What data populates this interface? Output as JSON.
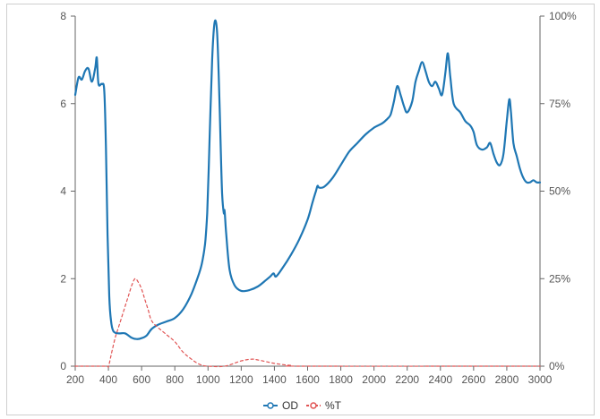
{
  "chart_data": {
    "type": "line",
    "x_axis": {
      "min": 200,
      "max": 3000,
      "ticks": [
        200,
        400,
        600,
        800,
        1000,
        1200,
        1400,
        1600,
        1800,
        2000,
        2200,
        2400,
        2600,
        2800,
        3000
      ]
    },
    "y_axis_left": {
      "min": 0,
      "max": 8,
      "ticks": [
        0,
        2,
        4,
        6,
        8
      ]
    },
    "y_axis_right": {
      "min": 0,
      "max": 100,
      "ticks": [
        0,
        25,
        50,
        75,
        100
      ],
      "tick_labels": [
        "0%",
        "25%",
        "50%",
        "75%",
        "100%"
      ]
    },
    "grid": false,
    "legend_position": "bottom-center",
    "series": [
      {
        "name": "OD",
        "axis": "left",
        "color": "#1f77b4",
        "style": "solid",
        "points": [
          [
            200,
            6.2
          ],
          [
            220,
            6.6
          ],
          [
            240,
            6.55
          ],
          [
            260,
            6.75
          ],
          [
            280,
            6.8
          ],
          [
            300,
            6.5
          ],
          [
            320,
            6.8
          ],
          [
            330,
            7.05
          ],
          [
            340,
            6.45
          ],
          [
            360,
            6.45
          ],
          [
            375,
            6.3
          ],
          [
            385,
            5.0
          ],
          [
            395,
            3.0
          ],
          [
            405,
            1.6
          ],
          [
            415,
            1.05
          ],
          [
            430,
            0.8
          ],
          [
            460,
            0.75
          ],
          [
            500,
            0.75
          ],
          [
            540,
            0.65
          ],
          [
            570,
            0.62
          ],
          [
            600,
            0.64
          ],
          [
            630,
            0.7
          ],
          [
            660,
            0.85
          ],
          [
            700,
            0.95
          ],
          [
            750,
            1.02
          ],
          [
            800,
            1.1
          ],
          [
            850,
            1.3
          ],
          [
            900,
            1.65
          ],
          [
            940,
            2.05
          ],
          [
            960,
            2.3
          ],
          [
            975,
            2.6
          ],
          [
            985,
            2.9
          ],
          [
            995,
            3.5
          ],
          [
            1005,
            4.6
          ],
          [
            1015,
            5.9
          ],
          [
            1025,
            7.0
          ],
          [
            1035,
            7.7
          ],
          [
            1045,
            7.9
          ],
          [
            1055,
            7.6
          ],
          [
            1065,
            6.6
          ],
          [
            1075,
            5.2
          ],
          [
            1085,
            3.95
          ],
          [
            1095,
            3.5
          ],
          [
            1100,
            3.55
          ],
          [
            1110,
            3.0
          ],
          [
            1130,
            2.2
          ],
          [
            1160,
            1.85
          ],
          [
            1200,
            1.72
          ],
          [
            1250,
            1.74
          ],
          [
            1300,
            1.82
          ],
          [
            1350,
            1.97
          ],
          [
            1375,
            2.05
          ],
          [
            1395,
            2.12
          ],
          [
            1410,
            2.05
          ],
          [
            1450,
            2.25
          ],
          [
            1500,
            2.55
          ],
          [
            1550,
            2.9
          ],
          [
            1600,
            3.35
          ],
          [
            1630,
            3.75
          ],
          [
            1650,
            4.0
          ],
          [
            1660,
            4.12
          ],
          [
            1670,
            4.08
          ],
          [
            1700,
            4.1
          ],
          [
            1750,
            4.3
          ],
          [
            1800,
            4.6
          ],
          [
            1850,
            4.9
          ],
          [
            1900,
            5.1
          ],
          [
            1950,
            5.3
          ],
          [
            2000,
            5.45
          ],
          [
            2050,
            5.55
          ],
          [
            2080,
            5.65
          ],
          [
            2100,
            5.75
          ],
          [
            2120,
            6.05
          ],
          [
            2140,
            6.4
          ],
          [
            2160,
            6.2
          ],
          [
            2180,
            5.95
          ],
          [
            2200,
            5.8
          ],
          [
            2230,
            6.05
          ],
          [
            2250,
            6.5
          ],
          [
            2270,
            6.75
          ],
          [
            2290,
            6.95
          ],
          [
            2310,
            6.75
          ],
          [
            2330,
            6.5
          ],
          [
            2350,
            6.4
          ],
          [
            2370,
            6.5
          ],
          [
            2390,
            6.35
          ],
          [
            2410,
            6.2
          ],
          [
            2430,
            6.7
          ],
          [
            2445,
            7.15
          ],
          [
            2460,
            6.6
          ],
          [
            2480,
            6.0
          ],
          [
            2520,
            5.8
          ],
          [
            2550,
            5.6
          ],
          [
            2580,
            5.5
          ],
          [
            2600,
            5.35
          ],
          [
            2620,
            5.05
          ],
          [
            2650,
            4.95
          ],
          [
            2680,
            5.0
          ],
          [
            2700,
            5.1
          ],
          [
            2720,
            4.85
          ],
          [
            2740,
            4.65
          ],
          [
            2760,
            4.6
          ],
          [
            2780,
            4.85
          ],
          [
            2800,
            5.6
          ],
          [
            2815,
            6.1
          ],
          [
            2825,
            5.8
          ],
          [
            2840,
            5.1
          ],
          [
            2860,
            4.8
          ],
          [
            2880,
            4.5
          ],
          [
            2900,
            4.3
          ],
          [
            2920,
            4.2
          ],
          [
            2940,
            4.2
          ],
          [
            2960,
            4.25
          ],
          [
            2980,
            4.2
          ],
          [
            3000,
            4.2
          ]
        ]
      },
      {
        "name": "%T",
        "axis": "right",
        "color": "#e05353",
        "style": "dashed",
        "points": [
          [
            200,
            0
          ],
          [
            380,
            0
          ],
          [
            400,
            0
          ],
          [
            420,
            4
          ],
          [
            440,
            8
          ],
          [
            460,
            11
          ],
          [
            480,
            14
          ],
          [
            500,
            17
          ],
          [
            520,
            20
          ],
          [
            540,
            23
          ],
          [
            560,
            25
          ],
          [
            580,
            24
          ],
          [
            600,
            22
          ],
          [
            620,
            19
          ],
          [
            640,
            16
          ],
          [
            660,
            13
          ],
          [
            700,
            11
          ],
          [
            750,
            9
          ],
          [
            800,
            7
          ],
          [
            850,
            4
          ],
          [
            900,
            2
          ],
          [
            950,
            0.5
          ],
          [
            1000,
            0
          ],
          [
            1100,
            0
          ],
          [
            1200,
            1.5
          ],
          [
            1260,
            2
          ],
          [
            1300,
            1.8
          ],
          [
            1400,
            0.8
          ],
          [
            1500,
            0.2
          ],
          [
            1600,
            0
          ],
          [
            3000,
            0
          ]
        ]
      }
    ]
  }
}
